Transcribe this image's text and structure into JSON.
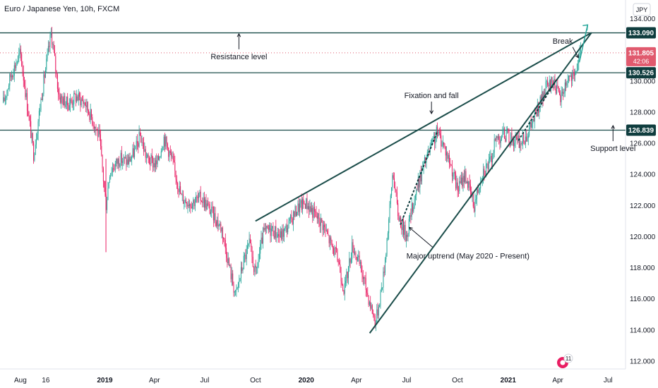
{
  "header": {
    "title": "Euro / Japanese Yen, 10h, FXCM",
    "currency_button": "JPY"
  },
  "colors": {
    "up": "#26a69a",
    "down": "#e91e63",
    "line": "#1b4d4a",
    "tag": "#0f3d3e",
    "current": "#e05a6e"
  },
  "chart_data": {
    "type": "candlestick",
    "title": "Euro / Japanese Yen, 10h, FXCM",
    "ylim": [
      111.5,
      135.2
    ],
    "y_ticks": [
      112,
      114,
      116,
      118,
      120,
      122,
      124,
      126,
      128,
      130,
      132,
      134
    ],
    "y_tick_labels": [
      "112.000",
      "114.000",
      "116.000",
      "118.000",
      "120.000",
      "122.000",
      "124.000",
      "126.000",
      "128.000",
      "130.000",
      "132.000",
      "134.000"
    ],
    "x_ticks": [
      "Aug",
      "16",
      "2019",
      "Apr",
      "Jul",
      "Oct",
      "2020",
      "Apr",
      "Jul",
      "Oct",
      "2021",
      "Apr",
      "Jul"
    ],
    "price_path": [
      [
        "2018-07-01",
        128.6
      ],
      [
        "2018-07-15",
        130.4
      ],
      [
        "2018-08-01",
        131.8
      ],
      [
        "2018-08-15",
        128.0
      ],
      [
        "2018-08-25",
        125.3
      ],
      [
        "2018-09-10",
        129.5
      ],
      [
        "2018-09-26",
        133.1
      ],
      [
        "2018-10-10",
        129.0
      ],
      [
        "2018-10-26",
        128.5
      ],
      [
        "2018-11-10",
        129.0
      ],
      [
        "2018-11-26",
        128.6
      ],
      [
        "2018-12-10",
        127.5
      ],
      [
        "2018-12-22",
        126.4
      ],
      [
        "2019-01-03",
        122.0
      ],
      [
        "2019-01-10",
        124.2
      ],
      [
        "2019-01-28",
        125.0
      ],
      [
        "2019-02-12",
        124.8
      ],
      [
        "2019-02-26",
        125.6
      ],
      [
        "2019-03-06",
        126.5
      ],
      [
        "2019-03-18",
        125.0
      ],
      [
        "2019-04-05",
        124.6
      ],
      [
        "2019-04-18",
        126.4
      ],
      [
        "2019-05-02",
        125.0
      ],
      [
        "2019-05-20",
        122.5
      ],
      [
        "2019-06-05",
        122.2
      ],
      [
        "2019-06-25",
        122.5
      ],
      [
        "2019-07-15",
        121.5
      ],
      [
        "2019-08-01",
        120.5
      ],
      [
        "2019-08-15",
        118.0
      ],
      [
        "2019-08-26",
        116.2
      ],
      [
        "2019-09-10",
        118.5
      ],
      [
        "2019-09-20",
        119.5
      ],
      [
        "2019-10-01",
        117.5
      ],
      [
        "2019-10-15",
        120.2
      ],
      [
        "2019-10-30",
        120.5
      ],
      [
        "2019-11-15",
        120.0
      ],
      [
        "2019-12-01",
        120.8
      ],
      [
        "2019-12-15",
        121.8
      ],
      [
        "2019-12-31",
        122.2
      ],
      [
        "2020-01-15",
        121.5
      ],
      [
        "2020-01-31",
        120.8
      ],
      [
        "2020-02-15",
        119.5
      ],
      [
        "2020-02-28",
        118.5
      ],
      [
        "2020-03-10",
        116.5
      ],
      [
        "2020-03-25",
        119.5
      ],
      [
        "2020-04-10",
        117.8
      ],
      [
        "2020-04-25",
        115.8
      ],
      [
        "2020-05-06",
        114.5
      ],
      [
        "2020-05-20",
        117.5
      ],
      [
        "2020-06-01",
        122.0
      ],
      [
        "2020-06-06",
        124.3
      ],
      [
        "2020-06-15",
        121.5
      ],
      [
        "2020-06-30",
        120.0
      ],
      [
        "2020-07-15",
        122.5
      ],
      [
        "2020-07-31",
        124.5
      ],
      [
        "2020-08-15",
        125.8
      ],
      [
        "2020-08-25",
        126.7
      ],
      [
        "2020-09-05",
        126.0
      ],
      [
        "2020-09-20",
        124.5
      ],
      [
        "2020-10-01",
        123.0
      ],
      [
        "2020-10-15",
        124.0
      ],
      [
        "2020-10-31",
        122.0
      ],
      [
        "2020-11-15",
        124.2
      ],
      [
        "2020-11-30",
        124.8
      ],
      [
        "2020-12-10",
        126.3
      ],
      [
        "2020-12-25",
        126.6
      ],
      [
        "2021-01-10",
        126.2
      ],
      [
        "2021-01-25",
        126.0
      ],
      [
        "2021-02-10",
        127.0
      ],
      [
        "2021-02-25",
        128.3
      ],
      [
        "2021-03-10",
        129.5
      ],
      [
        "2021-03-25",
        130.0
      ],
      [
        "2021-04-05",
        128.8
      ],
      [
        "2021-04-20",
        130.3
      ],
      [
        "2021-05-01",
        130.1
      ],
      [
        "2021-05-07",
        131.2
      ],
      [
        "2021-05-13",
        131.8
      ]
    ],
    "horizontal_levels": [
      {
        "name": "Resistance level",
        "value": 133.09,
        "tag": "133.090"
      },
      {
        "name": "Support level",
        "value": 126.839,
        "tag": "126.839"
      },
      {
        "name": "",
        "value": 130.526,
        "tag": "130.526"
      }
    ],
    "current_price": {
      "value": 131.805,
      "tag": "131.805",
      "countdown": "42:06"
    },
    "trendlines": [
      {
        "from": [
          "2019-10-01",
          121.0
        ],
        "to": [
          "2021-06-01",
          133.1
        ]
      },
      {
        "from": [
          "2020-04-25",
          113.8
        ],
        "to": [
          "2021-06-01",
          133.1
        ]
      }
    ],
    "annotations": [
      {
        "text": "Resistance level",
        "anchor": [
          "2019-09-01",
          131.4
        ],
        "arrow": "up"
      },
      {
        "text": "Fixation and fall",
        "anchor": [
          "2020-08-15",
          128.9
        ],
        "arrow": "down"
      },
      {
        "text": "Break",
        "anchor": [
          "2021-04-10",
          132.4
        ],
        "arrow": "down"
      },
      {
        "text": "Support level",
        "anchor": [
          "2021-07-10",
          125.5
        ],
        "arrow": "up"
      },
      {
        "text": "Major uptrend (May 2020 - Present)",
        "anchor": [
          "2020-10-20",
          118.6
        ],
        "arrow": "up-left"
      }
    ]
  },
  "badge": {
    "count": "11"
  }
}
